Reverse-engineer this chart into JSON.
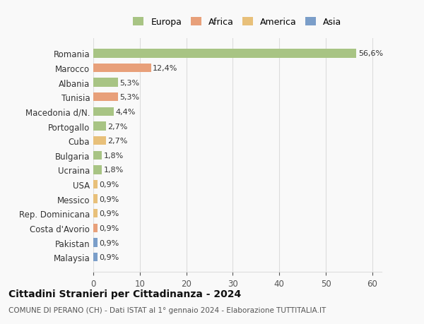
{
  "categories": [
    "Malaysia",
    "Pakistan",
    "Costa d'Avorio",
    "Rep. Dominicana",
    "Messico",
    "USA",
    "Ucraina",
    "Bulgaria",
    "Cuba",
    "Portogallo",
    "Macedonia d/N.",
    "Tunisia",
    "Albania",
    "Marocco",
    "Romania"
  ],
  "values": [
    0.9,
    0.9,
    0.9,
    0.9,
    0.9,
    0.9,
    1.8,
    1.8,
    2.7,
    2.7,
    4.4,
    5.3,
    5.3,
    12.4,
    56.6
  ],
  "labels": [
    "0,9%",
    "0,9%",
    "0,9%",
    "0,9%",
    "0,9%",
    "0,9%",
    "1,8%",
    "1,8%",
    "2,7%",
    "2,7%",
    "4,4%",
    "5,3%",
    "5,3%",
    "12,4%",
    "56,6%"
  ],
  "colors": [
    "#7b9ec9",
    "#7b9ec9",
    "#e8a07a",
    "#e8c07a",
    "#e8c07a",
    "#e8c07a",
    "#a8c484",
    "#a8c484",
    "#e8c07a",
    "#a8c484",
    "#a8c484",
    "#e8a07a",
    "#a8c484",
    "#e8a07a",
    "#a8c484"
  ],
  "legend_labels": [
    "Europa",
    "Africa",
    "America",
    "Asia"
  ],
  "legend_colors": [
    "#a8c484",
    "#e8a07a",
    "#e8c07a",
    "#7b9ec9"
  ],
  "title": "Cittadini Stranieri per Cittadinanza - 2024",
  "subtitle": "COMUNE DI PERANO (CH) - Dati ISTAT al 1° gennaio 2024 - Elaborazione TUTTITALIA.IT",
  "xlim": [
    0,
    62
  ],
  "xticks": [
    0,
    10,
    20,
    30,
    40,
    50,
    60
  ],
  "background_color": "#f9f9f9",
  "grid_color": "#dddddd"
}
